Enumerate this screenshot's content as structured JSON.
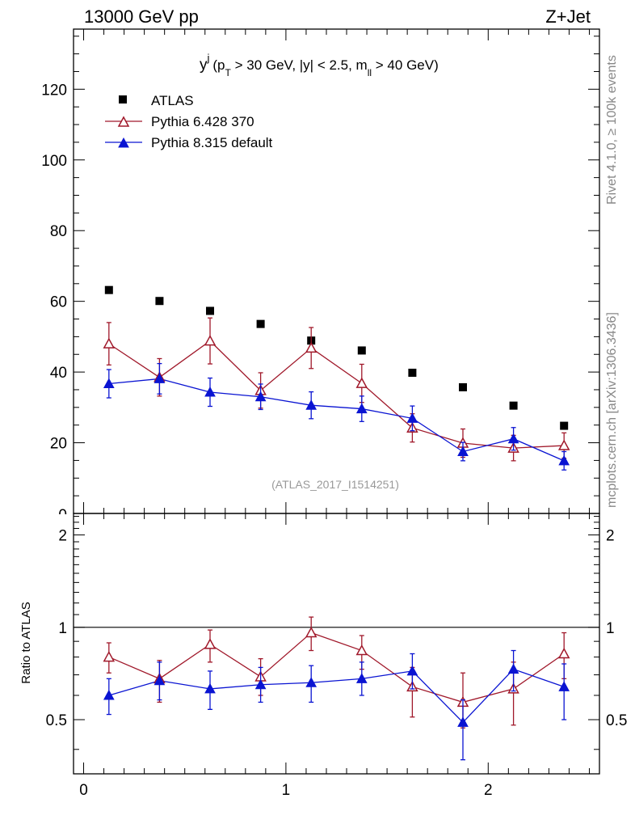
{
  "header": {
    "left": "13000 GeV pp",
    "right": "Z+Jet"
  },
  "title": {
    "var": "y",
    "sup": "j",
    "cut_open": "(p",
    "cut_pt_sub": "T",
    "cut_mid": " > 30 GeV, |y| < 2.5, m",
    "cut_m_sub": "ll",
    "cut_end": " > 40 GeV)"
  },
  "side_labels": {
    "rivet": "Rivet 4.1.0, ≥ 100k events",
    "mcplots": "mcplots.cern.ch [arXiv:1306.3436]"
  },
  "analysis_tag": "(ATLAS_2017_I1514251)",
  "colors": {
    "atlas": "#000000",
    "pythia6": "#a0182a",
    "pythia8": "#0a14d2"
  },
  "chart_data": [
    {
      "type": "scatter",
      "panel": "main",
      "xlim": [
        -0.05,
        2.55
      ],
      "ylim": [
        0,
        137
      ],
      "yticks": [
        20,
        40,
        60,
        80,
        100,
        120
      ],
      "yticklabels": [
        "20",
        "40",
        "60",
        "80",
        "100",
        "120"
      ],
      "ylabel": "",
      "legend_position": "top-left",
      "x": [
        0.125,
        0.375,
        0.625,
        0.875,
        1.125,
        1.375,
        1.625,
        1.875,
        2.125,
        2.375
      ],
      "series": [
        {
          "name": "ATLAS",
          "marker": "square",
          "values": [
            63.2,
            60.1,
            57.3,
            53.6,
            48.9,
            46.1,
            39.8,
            35.7,
            30.5,
            24.8
          ],
          "errors": [
            0.6,
            0.6,
            0.6,
            0.6,
            0.6,
            0.6,
            0.5,
            0.5,
            0.5,
            0.5
          ]
        },
        {
          "name": "Pythia 6.428 370",
          "marker": "open-triangle",
          "values": [
            48.0,
            38.5,
            48.8,
            34.8,
            46.8,
            36.8,
            24.2,
            19.9,
            18.5,
            19.2
          ],
          "errors": [
            6.0,
            5.3,
            6.5,
            5.0,
            5.8,
            5.4,
            4.0,
            4.0,
            3.6,
            3.6
          ]
        },
        {
          "name": "Pythia 8.315 default",
          "marker": "filled-triangle",
          "values": [
            36.7,
            38.1,
            34.3,
            33.0,
            30.6,
            29.6,
            26.9,
            17.5,
            21.1,
            14.9
          ],
          "errors": [
            4.0,
            4.3,
            4.0,
            3.6,
            3.8,
            3.6,
            3.5,
            2.6,
            3.2,
            2.6
          ]
        }
      ]
    },
    {
      "type": "scatter",
      "panel": "ratio",
      "xlim": [
        -0.05,
        2.55
      ],
      "ylim": [
        0.333,
        2.35
      ],
      "yscale": "log",
      "yticks": [
        0.5,
        1,
        2
      ],
      "yticklabels": [
        "0.5",
        "1",
        "2"
      ],
      "xticks": [
        0,
        1,
        2
      ],
      "xticklabels": [
        "0",
        "1",
        "2"
      ],
      "ylabel": "Ratio to ATLAS",
      "reference_line": 1,
      "x": [
        0.125,
        0.375,
        0.625,
        0.875,
        1.125,
        1.375,
        1.625,
        1.875,
        2.125,
        2.375
      ],
      "series": [
        {
          "name": "Pythia 6.428 370",
          "marker": "open-triangle",
          "values": [
            0.8,
            0.68,
            0.88,
            0.69,
            0.96,
            0.84,
            0.64,
            0.57,
            0.63,
            0.82
          ],
          "err_low": [
            0.09,
            0.11,
            0.11,
            0.09,
            0.12,
            0.11,
            0.13,
            0.1,
            0.15,
            0.14
          ],
          "err_high": [
            0.09,
            0.1,
            0.1,
            0.1,
            0.12,
            0.1,
            0.1,
            0.14,
            0.14,
            0.14
          ]
        },
        {
          "name": "Pythia 8.315 default",
          "marker": "filled-triangle",
          "values": [
            0.6,
            0.67,
            0.63,
            0.65,
            0.66,
            0.68,
            0.72,
            0.49,
            0.73,
            0.64
          ],
          "err_low": [
            0.08,
            0.09,
            0.09,
            0.08,
            0.09,
            0.08,
            0.09,
            0.12,
            0.11,
            0.14
          ],
          "err_high": [
            0.08,
            0.1,
            0.09,
            0.09,
            0.09,
            0.09,
            0.1,
            0.09,
            0.11,
            0.12
          ]
        }
      ]
    }
  ]
}
